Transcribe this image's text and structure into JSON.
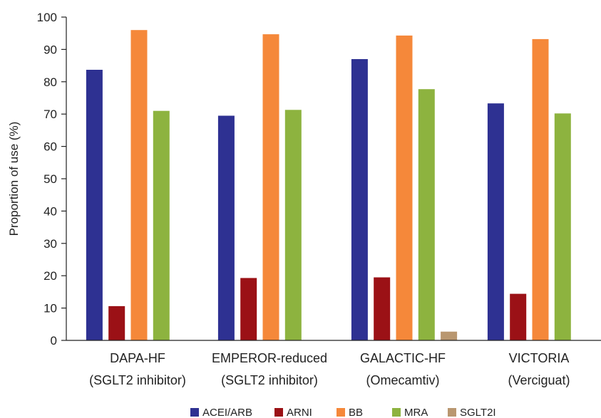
{
  "chart_data": {
    "type": "bar",
    "title": "",
    "xlabel": "",
    "ylabel": "Proportion of use (%)",
    "ylim": [
      0,
      100
    ],
    "yticks": [
      0,
      10,
      20,
      30,
      40,
      50,
      60,
      70,
      80,
      90,
      100
    ],
    "grid": false,
    "legend_position": "bottom",
    "categories": [
      {
        "line1": "DAPA-HF",
        "line2": "(SGLT2 inhibitor)"
      },
      {
        "line1": "EMPEROR-reduced",
        "line2": "(SGLT2 inhibitor)"
      },
      {
        "line1": "GALACTIC-HF",
        "line2": "(Omecamtiv)"
      },
      {
        "line1": "VICTORIA",
        "line2": "(Verciguat)"
      }
    ],
    "series": [
      {
        "name": "ACEI/ARB",
        "color": "#2e3192",
        "values": [
          83.7,
          69.5,
          87.0,
          73.3
        ]
      },
      {
        "name": "ARNI",
        "color": "#9b1116",
        "values": [
          10.6,
          19.3,
          19.5,
          14.4
        ]
      },
      {
        "name": "BB",
        "color": "#f5883a",
        "values": [
          96.0,
          94.7,
          94.3,
          93.2
        ]
      },
      {
        "name": "MRA",
        "color": "#8db33f",
        "values": [
          71.0,
          71.3,
          77.7,
          70.2
        ]
      },
      {
        "name": "SGLT2I",
        "color": "#b99770",
        "values": [
          null,
          null,
          2.7,
          null
        ]
      }
    ]
  }
}
